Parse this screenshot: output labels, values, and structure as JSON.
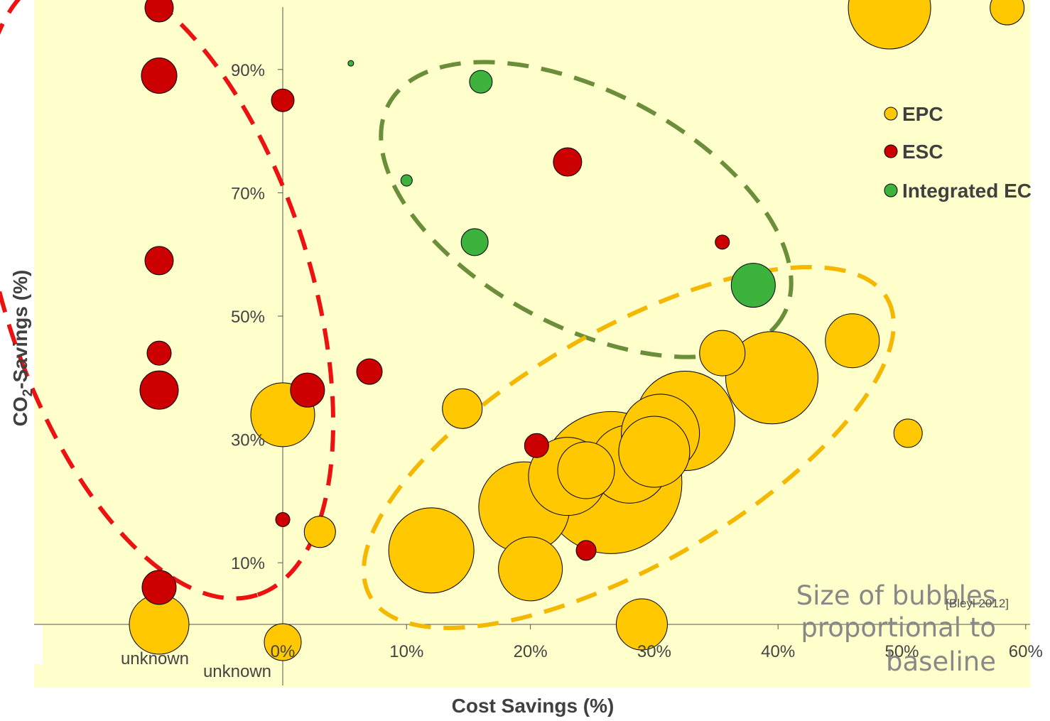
{
  "chart_data": {
    "type": "scatter",
    "subtype": "bubble",
    "xlabel": "Cost Savings (%)",
    "ylabel_main": "CO",
    "ylabel_sub": "2",
    "ylabel_rest": "-Savings (%)",
    "x_ticks": [
      "0%",
      "10%",
      "20%",
      "30%",
      "40%",
      "50%",
      "60%"
    ],
    "y_ticks": [
      "10%",
      "30%",
      "50%",
      "70%",
      "90%"
    ],
    "x_unknown_label": "unknown",
    "y_unknown_label": "unknown",
    "xlim": [
      -20,
      60
    ],
    "ylim": [
      0,
      100
    ],
    "annotation": [
      "Size of bubbles",
      "proportional to",
      "baseline"
    ],
    "source": "[Bleyl 2012]",
    "colors": {
      "background": "#FFFFCC",
      "EPC": "#FFC800",
      "ESC": "#CC0000",
      "Integrated EC": "#3DB33D",
      "epc_ellipse": "#F5B800",
      "esc_ellipse": "#EE1111",
      "iec_ellipse": "#6B8E3A"
    },
    "series": [
      {
        "name": "EPC",
        "points": [
          {
            "x": "unknown",
            "y": 100,
            "size": 14
          },
          {
            "x": "unknown",
            "y": 0,
            "size": 42
          },
          {
            "x": 0,
            "y": 34,
            "size": 45
          },
          {
            "x": 0,
            "y": "unknown",
            "size": 26
          },
          {
            "x": 3,
            "y": 15,
            "size": 22
          },
          {
            "x": 12,
            "y": 12,
            "size": 60
          },
          {
            "x": 14.5,
            "y": 35,
            "size": 28
          },
          {
            "x": 19.5,
            "y": 19,
            "size": 64
          },
          {
            "x": 20,
            "y": 9,
            "size": 45
          },
          {
            "x": 26.5,
            "y": 23,
            "size": 100
          },
          {
            "x": 28,
            "y": 26,
            "size": 55
          },
          {
            "x": 30,
            "y": 28,
            "size": 50
          },
          {
            "x": 32.5,
            "y": 33,
            "size": 70
          },
          {
            "x": 30.5,
            "y": 31,
            "size": 55
          },
          {
            "x": 23,
            "y": 24,
            "size": 55
          },
          {
            "x": 24.5,
            "y": 25,
            "size": 40
          },
          {
            "x": 29,
            "y": 0,
            "size": 36
          },
          {
            "x": 35.5,
            "y": 44,
            "size": 32
          },
          {
            "x": 39.5,
            "y": 40,
            "size": 65
          },
          {
            "x": 46,
            "y": 46,
            "size": 38
          },
          {
            "x": 50.5,
            "y": 31,
            "size": 20
          },
          {
            "x": 49,
            "y": 100,
            "size": 58
          },
          {
            "x": 58.5,
            "y": 100,
            "size": 24
          }
        ]
      },
      {
        "name": "ESC",
        "points": [
          {
            "x": "unknown",
            "y": 100,
            "size": 20
          },
          {
            "x": "unknown",
            "y": 89,
            "size": 25
          },
          {
            "x": "unknown",
            "y": 59,
            "size": 20
          },
          {
            "x": "unknown",
            "y": 44,
            "size": 17
          },
          {
            "x": "unknown",
            "y": 38,
            "size": 27
          },
          {
            "x": "unknown",
            "y": 6,
            "size": 24
          },
          {
            "x": 0,
            "y": 85,
            "size": 16
          },
          {
            "x": 0,
            "y": 17,
            "size": 10
          },
          {
            "x": 2,
            "y": 38,
            "size": 24
          },
          {
            "x": 7,
            "y": 41,
            "size": 18
          },
          {
            "x": 20.5,
            "y": 29,
            "size": 17
          },
          {
            "x": 23,
            "y": 75,
            "size": 20
          },
          {
            "x": 24.5,
            "y": 12,
            "size": 14
          },
          {
            "x": 35.5,
            "y": 62,
            "size": 10
          }
        ]
      },
      {
        "name": "Integrated EC",
        "points": [
          {
            "x": 5.5,
            "y": 91,
            "size": 4
          },
          {
            "x": 10,
            "y": 72,
            "size": 8
          },
          {
            "x": 16,
            "y": 88,
            "size": 16
          },
          {
            "x": 15.5,
            "y": 62,
            "size": 19
          },
          {
            "x": 38,
            "y": 55,
            "size": 31
          }
        ]
      }
    ]
  }
}
